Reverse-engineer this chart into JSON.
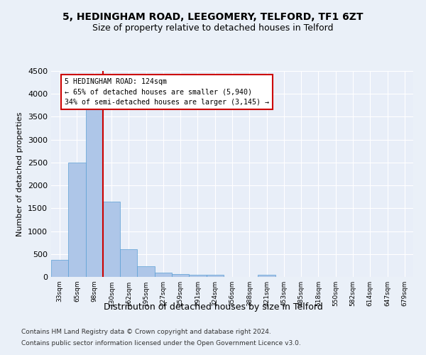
{
  "title_line1": "5, HEDINGHAM ROAD, LEEGOMERY, TELFORD, TF1 6ZT",
  "title_line2": "Size of property relative to detached houses in Telford",
  "xlabel": "Distribution of detached houses by size in Telford",
  "ylabel": "Number of detached properties",
  "categories": [
    "33sqm",
    "65sqm",
    "98sqm",
    "130sqm",
    "162sqm",
    "195sqm",
    "227sqm",
    "259sqm",
    "291sqm",
    "324sqm",
    "356sqm",
    "388sqm",
    "421sqm",
    "453sqm",
    "485sqm",
    "518sqm",
    "550sqm",
    "582sqm",
    "614sqm",
    "647sqm",
    "679sqm"
  ],
  "values": [
    375,
    2500,
    3750,
    1650,
    600,
    230,
    100,
    60,
    50,
    50,
    0,
    0,
    50,
    0,
    0,
    0,
    0,
    0,
    0,
    0,
    0
  ],
  "bar_color": "#aec6e8",
  "bar_edge_color": "#5a9fd4",
  "fig_background_color": "#eaf0f8",
  "ax_background_color": "#e8eef8",
  "grid_color": "#ffffff",
  "annotation_line1": "5 HEDINGHAM ROAD: 124sqm",
  "annotation_line2": "← 65% of detached houses are smaller (5,940)",
  "annotation_line3": "34% of semi-detached houses are larger (3,145) →",
  "annotation_box_color": "#ffffff",
  "annotation_border_color": "#cc0000",
  "red_line_color": "#cc0000",
  "ylim": [
    0,
    4500
  ],
  "yticks": [
    0,
    500,
    1000,
    1500,
    2000,
    2500,
    3000,
    3500,
    4000,
    4500
  ],
  "footnote1": "Contains HM Land Registry data © Crown copyright and database right 2024.",
  "footnote2": "Contains public sector information licensed under the Open Government Licence v3.0."
}
